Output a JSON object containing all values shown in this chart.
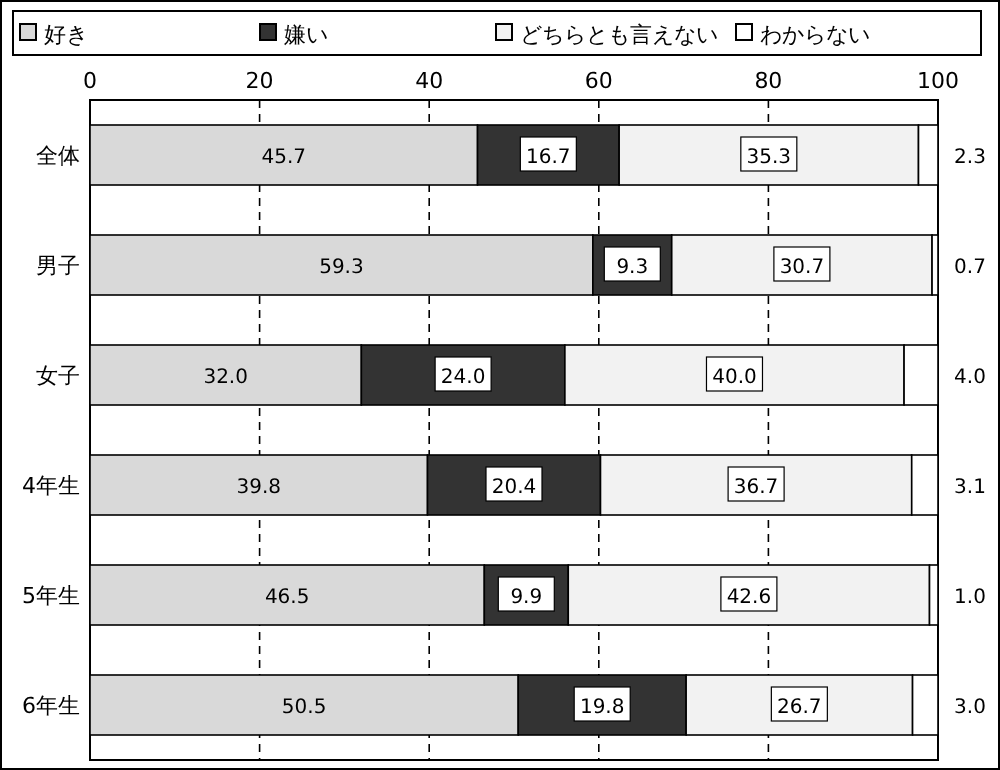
{
  "chart_data": {
    "type": "bar",
    "orientation": "horizontal",
    "stacked": true,
    "categories": [
      "全体",
      "男子",
      "女子",
      "4年生",
      "5年生",
      "6年生"
    ],
    "series": [
      {
        "name": "好き",
        "color": "#d9d9d9",
        "values": [
          45.7,
          59.3,
          32.0,
          39.8,
          46.5,
          50.5
        ],
        "value_labels": [
          "45.7",
          "59.3",
          "32.0",
          "39.8",
          "46.5",
          "50.5"
        ]
      },
      {
        "name": "嫌い",
        "color": "#333333",
        "values": [
          16.7,
          9.3,
          24.0,
          20.4,
          9.9,
          19.8
        ],
        "value_labels": [
          "16.7",
          "9.3",
          "24.0",
          "20.4",
          "9.9",
          "19.8"
        ]
      },
      {
        "name": "どちらとも言えない",
        "color": "#f2f2f2",
        "values": [
          35.3,
          30.7,
          40.0,
          36.7,
          42.6,
          26.7
        ],
        "value_labels": [
          "35.3",
          "30.7",
          "40.0",
          "36.7",
          "42.6",
          "26.7"
        ]
      },
      {
        "name": "わからない",
        "color": "#ffffff",
        "values": [
          2.3,
          0.7,
          4.0,
          3.1,
          1.0,
          3.0
        ],
        "value_labels": [
          "2.3",
          "0.7",
          "4.0",
          "3.1",
          "1.0",
          "3.0"
        ]
      }
    ],
    "xlim": [
      0,
      100
    ],
    "xticks": [
      0,
      20,
      40,
      60,
      80,
      100
    ],
    "grid": "x",
    "legend": "top"
  }
}
